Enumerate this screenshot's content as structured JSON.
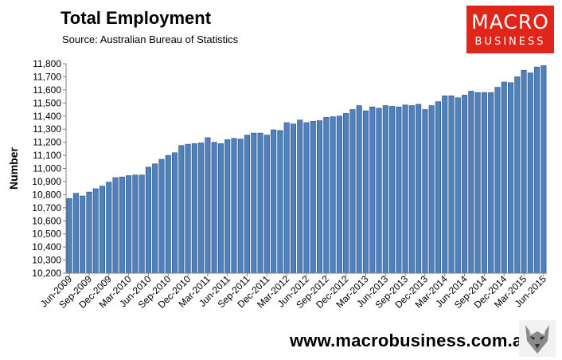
{
  "title": "Total Employment",
  "subtitle": "Source: Australian Bureau of Statistics",
  "logo": {
    "line1": "MACRO",
    "line2": "BUSINESS"
  },
  "website": "www.macrobusiness.com.au",
  "colors": {
    "bar": "#4f81bd",
    "bar_edge": "#2a4f7f",
    "logo_bg": "#e0251b"
  },
  "chart_data": {
    "type": "bar",
    "title": "Total Employment",
    "ylabel": "Number",
    "xlabel": "",
    "ylim": [
      10200,
      11800
    ],
    "yticks": [
      10200,
      10300,
      10400,
      10500,
      10600,
      10700,
      10800,
      10900,
      11000,
      11100,
      11200,
      11300,
      11400,
      11500,
      11600,
      11700,
      11800
    ],
    "ytick_labels": [
      "10,200",
      "10,300",
      "10,400",
      "10,500",
      "10,600",
      "10,700",
      "10,800",
      "10,900",
      "11,000",
      "11,100",
      "11,200",
      "11,300",
      "11,400",
      "11,500",
      "11,600",
      "11,700",
      "11,800"
    ],
    "xtick_labels": [
      "Jun-2009",
      "Sep-2009",
      "Dec-2009",
      "Mar-2010",
      "Jun-2010",
      "Sep-2010",
      "Dec-2010",
      "Mar-2011",
      "Jun-2011",
      "Sep-2011",
      "Dec-2011",
      "Mar-2012",
      "Jun-2012",
      "Sep-2012",
      "Dec-2012",
      "Mar-2013",
      "Jun-2013",
      "Sep-2013",
      "Dec-2013",
      "Mar-2014",
      "Jun-2014",
      "Sep-2014",
      "Dec-2014",
      "Mar-2015",
      "Jun-2015"
    ],
    "grid": false,
    "legend": "none",
    "categories": [
      "Jun-2009",
      "Jul-2009",
      "Aug-2009",
      "Sep-2009",
      "Oct-2009",
      "Nov-2009",
      "Dec-2009",
      "Jan-2010",
      "Feb-2010",
      "Mar-2010",
      "Apr-2010",
      "May-2010",
      "Jun-2010",
      "Jul-2010",
      "Aug-2010",
      "Sep-2010",
      "Oct-2010",
      "Nov-2010",
      "Dec-2010",
      "Jan-2011",
      "Feb-2011",
      "Mar-2011",
      "Apr-2011",
      "May-2011",
      "Jun-2011",
      "Jul-2011",
      "Aug-2011",
      "Sep-2011",
      "Oct-2011",
      "Nov-2011",
      "Dec-2011",
      "Jan-2012",
      "Feb-2012",
      "Mar-2012",
      "Apr-2012",
      "May-2012",
      "Jun-2012",
      "Jul-2012",
      "Aug-2012",
      "Sep-2012",
      "Oct-2012",
      "Nov-2012",
      "Dec-2012",
      "Jan-2013",
      "Feb-2013",
      "Mar-2013",
      "Apr-2013",
      "May-2013",
      "Jun-2013",
      "Jul-2013",
      "Aug-2013",
      "Sep-2013",
      "Oct-2013",
      "Nov-2013",
      "Dec-2013",
      "Jan-2014",
      "Feb-2014",
      "Mar-2014",
      "Apr-2014",
      "May-2014",
      "Jun-2014",
      "Jul-2014",
      "Aug-2014",
      "Sep-2014",
      "Oct-2014",
      "Nov-2014",
      "Dec-2014",
      "Jan-2015",
      "Feb-2015",
      "Mar-2015",
      "Apr-2015",
      "May-2015",
      "Jun-2015"
    ],
    "values": [
      10770,
      10810,
      10790,
      10820,
      10845,
      10865,
      10895,
      10930,
      10935,
      10945,
      10950,
      10950,
      11010,
      11035,
      11070,
      11100,
      11120,
      11175,
      11185,
      11190,
      11195,
      11235,
      11200,
      11190,
      11220,
      11230,
      11225,
      11255,
      11270,
      11270,
      11255,
      11295,
      11290,
      11350,
      11340,
      11370,
      11350,
      11360,
      11365,
      11390,
      11395,
      11400,
      11420,
      11450,
      11480,
      11440,
      11470,
      11460,
      11480,
      11475,
      11470,
      11485,
      11480,
      11490,
      11450,
      11480,
      11510,
      11555,
      11555,
      11540,
      11560,
      11590,
      11580,
      11580,
      11580,
      11620,
      11660,
      11655,
      11700,
      11750,
      11730,
      11775,
      11785
    ]
  }
}
